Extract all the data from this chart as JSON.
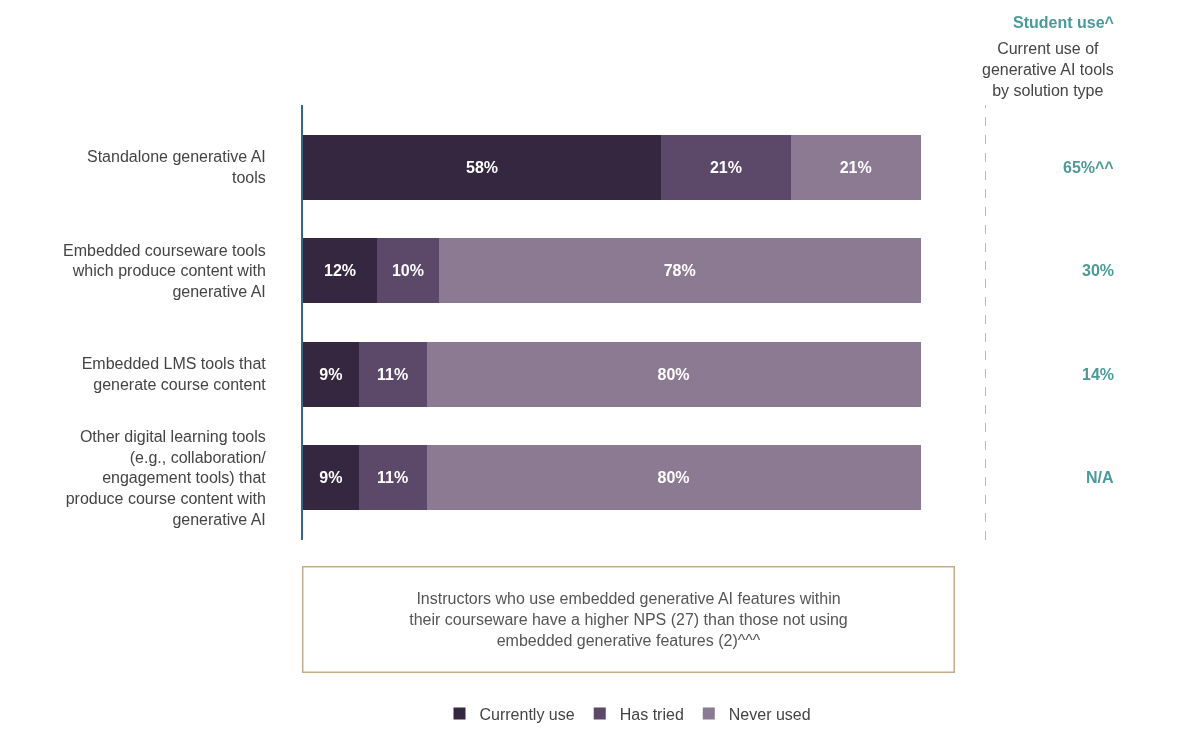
{
  "chart_data": {
    "type": "bar",
    "orientation": "horizontal",
    "stacked": true,
    "legend": "bottom",
    "grid": false,
    "tick_labels": "y",
    "categories": [
      "Standalone generative AI tools",
      "Embedded courseware tools which produce content with generative AI",
      "Embedded LMS tools that generate course content",
      "Other digital learning tools (e.g., collaboration/ engagement tools) that produce course content with generative AI"
    ],
    "series": [
      {
        "name": "Currently use",
        "color": "#35273f",
        "values": [
          58,
          12,
          9,
          9
        ],
        "value_labels": [
          "58%",
          "12%",
          "9%",
          "9%"
        ]
      },
      {
        "name": "Has tried",
        "color": "#5c4868",
        "values": [
          21,
          10,
          11,
          11
        ],
        "value_labels": [
          "21%",
          "10%",
          "11%",
          "11%"
        ]
      },
      {
        "name": "Never used",
        "color": "#8c7a93",
        "values": [
          21,
          78,
          80,
          80
        ],
        "value_labels": [
          "21%",
          "78%",
          "80%",
          "80%"
        ]
      }
    ],
    "annotations": [
      "Student use^",
      "Current use of generative AI tools by solution type",
      "65%^^",
      "30%",
      "14%",
      "N/A",
      "Instructors who use embedded generative AI features within their courseware have a higher NPS (27) than those not using embedded generative features (2)^^^"
    ]
  }
}
